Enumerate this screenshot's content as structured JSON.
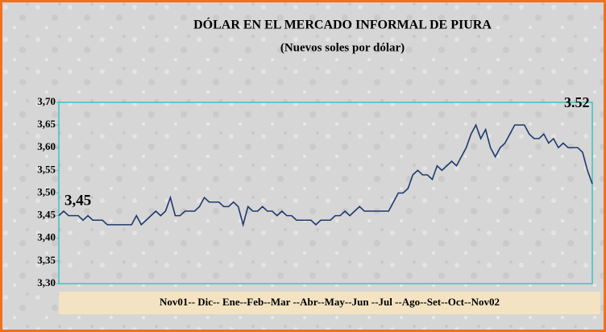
{
  "chart_data": {
    "type": "line",
    "title": "DÓLAR EN EL MERCADO INFORMAL DE PIURA",
    "subtitle": "(Nuevos soles por dólar)",
    "x_label": "Nov01-- Dic-- Ene--Feb--Mar --Abr--May--Jun --Jul --Ago--Set--Oct--Nov02",
    "annotations": [
      "3,45",
      "3.52"
    ],
    "color": "#1f3a6e",
    "ylim": [
      3.3,
      3.7
    ],
    "yticks": [
      {
        "value": 3.3,
        "label": "3,30"
      },
      {
        "value": 3.35,
        "label": "3,35"
      },
      {
        "value": 3.4,
        "label": "3,40"
      },
      {
        "value": 3.45,
        "label": "3,45"
      },
      {
        "value": 3.5,
        "label": "3,50"
      },
      {
        "value": 3.55,
        "label": "3,55"
      },
      {
        "value": 3.6,
        "label": "3,60"
      },
      {
        "value": 3.65,
        "label": "3,65"
      },
      {
        "value": 3.7,
        "label": "3,70"
      }
    ],
    "values": [
      3.45,
      3.46,
      3.45,
      3.45,
      3.45,
      3.44,
      3.45,
      3.44,
      3.44,
      3.44,
      3.43,
      3.43,
      3.43,
      3.43,
      3.43,
      3.43,
      3.45,
      3.43,
      3.44,
      3.45,
      3.46,
      3.45,
      3.46,
      3.49,
      3.45,
      3.45,
      3.46,
      3.46,
      3.46,
      3.47,
      3.49,
      3.48,
      3.48,
      3.48,
      3.47,
      3.47,
      3.48,
      3.47,
      3.43,
      3.47,
      3.46,
      3.46,
      3.47,
      3.46,
      3.46,
      3.45,
      3.46,
      3.45,
      3.45,
      3.44,
      3.44,
      3.44,
      3.44,
      3.43,
      3.44,
      3.44,
      3.44,
      3.45,
      3.45,
      3.46,
      3.45,
      3.46,
      3.47,
      3.46,
      3.46,
      3.46,
      3.46,
      3.46,
      3.46,
      3.48,
      3.5,
      3.5,
      3.51,
      3.54,
      3.55,
      3.54,
      3.54,
      3.53,
      3.56,
      3.55,
      3.56,
      3.57,
      3.56,
      3.58,
      3.6,
      3.63,
      3.65,
      3.62,
      3.64,
      3.6,
      3.58,
      3.6,
      3.61,
      3.63,
      3.65,
      3.65,
      3.65,
      3.63,
      3.62,
      3.62,
      3.63,
      3.61,
      3.62,
      3.6,
      3.61,
      3.6,
      3.6,
      3.6,
      3.59,
      3.55,
      3.52
    ]
  }
}
